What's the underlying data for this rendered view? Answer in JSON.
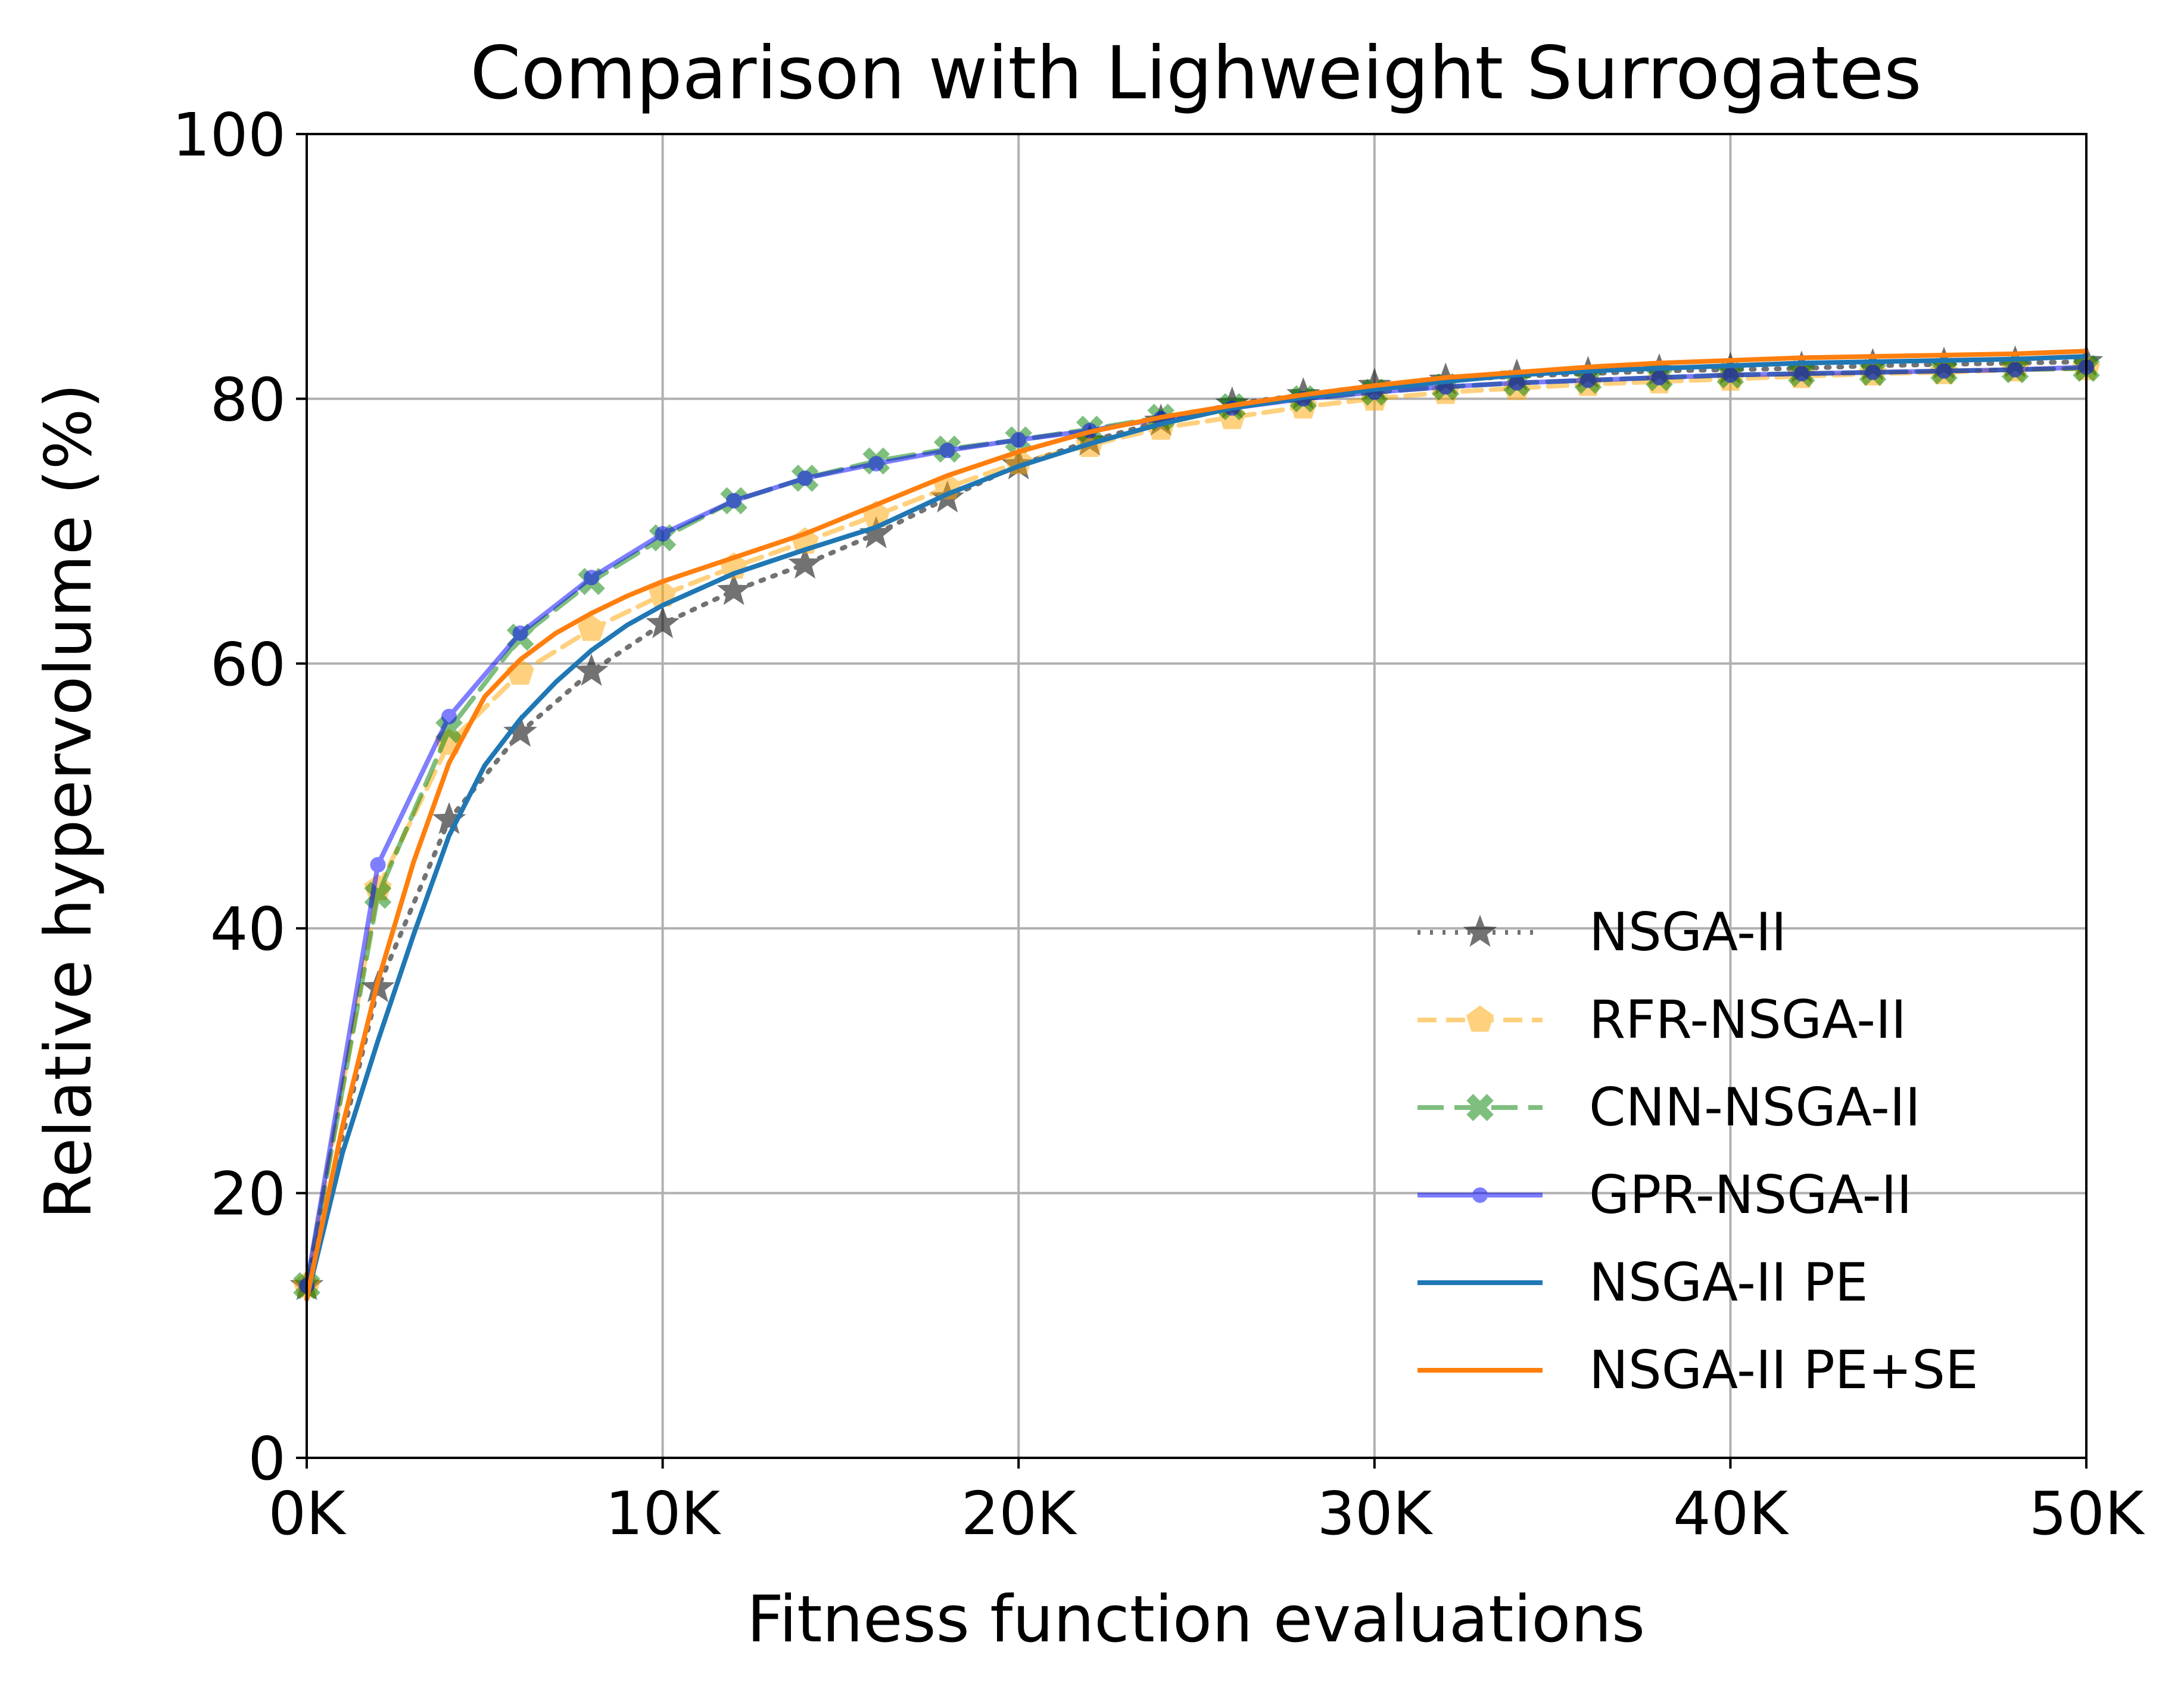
{
  "chart_data": {
    "type": "line",
    "title": "Comparison with Lighweight Surrogates",
    "xlabel": "Fitness function evaluations",
    "ylabel": "Relative hypervolume (%)",
    "xlim": [
      0,
      50000
    ],
    "ylim": [
      0,
      100
    ],
    "xticks": [
      0,
      10000,
      20000,
      30000,
      40000,
      50000
    ],
    "xtick_labels": [
      "0K",
      "10K",
      "20K",
      "30K",
      "40K",
      "50K"
    ],
    "yticks": [
      0,
      20,
      40,
      60,
      80,
      100
    ],
    "ytick_labels": [
      "0",
      "20",
      "40",
      "60",
      "80",
      "100"
    ],
    "grid": true,
    "legend_position": "lower-right",
    "series": [
      {
        "name": "NSGA-II",
        "color": "#000000",
        "dash": "dotted",
        "marker": "star",
        "opacity": 0.55,
        "x": [
          0,
          2000,
          4000,
          6000,
          8000,
          10000,
          12000,
          14000,
          16000,
          18000,
          20000,
          22000,
          24000,
          26000,
          28000,
          30000,
          32000,
          34000,
          36000,
          38000,
          40000,
          42000,
          44000,
          46000,
          48000,
          50000
        ],
        "y": [
          13,
          35.5,
          48.2,
          54.8,
          59.4,
          63,
          65.5,
          67.5,
          69.8,
          72.5,
          75,
          76.8,
          78.3,
          79.6,
          80.3,
          81,
          81.4,
          81.7,
          81.9,
          82.1,
          82.2,
          82.3,
          82.5,
          82.6,
          82.7,
          82.8
        ]
      },
      {
        "name": "RFR-NSGA-II",
        "color": "#ffa500",
        "dash": "dashed",
        "marker": "pentagon",
        "opacity": 0.5,
        "x": [
          0,
          2000,
          4000,
          6000,
          8000,
          10000,
          12000,
          14000,
          16000,
          18000,
          20000,
          22000,
          24000,
          26000,
          28000,
          30000,
          32000,
          34000,
          36000,
          38000,
          40000,
          42000,
          44000,
          46000,
          48000,
          50000
        ],
        "y": [
          13,
          43,
          54,
          59.3,
          62.6,
          65.2,
          67.3,
          69.2,
          71.2,
          73.3,
          75.2,
          76.5,
          77.8,
          78.6,
          79.4,
          80,
          80.5,
          80.8,
          81.1,
          81.3,
          81.5,
          81.7,
          81.9,
          82,
          82.2,
          82.3
        ]
      },
      {
        "name": "CNN-NSGA-II",
        "color": "#008000",
        "dash": "longdash",
        "marker": "x-filled",
        "opacity": 0.5,
        "x": [
          0,
          2000,
          4000,
          6000,
          8000,
          10000,
          12000,
          14000,
          16000,
          18000,
          20000,
          22000,
          24000,
          26000,
          28000,
          30000,
          32000,
          34000,
          36000,
          38000,
          40000,
          42000,
          44000,
          46000,
          48000,
          50000
        ],
        "y": [
          13,
          42.5,
          55,
          62,
          66.2,
          69.5,
          72.3,
          74,
          75.3,
          76.2,
          76.9,
          77.7,
          78.6,
          79.4,
          80,
          80.5,
          80.9,
          81.2,
          81.4,
          81.6,
          81.8,
          81.9,
          82,
          82.1,
          82.2,
          82.3
        ]
      },
      {
        "name": "GPR-NSGA-II",
        "color": "#0000ff",
        "dash": "solid",
        "marker": "dot",
        "opacity": 0.5,
        "x": [
          0,
          2000,
          4000,
          6000,
          8000,
          10000,
          12000,
          14000,
          16000,
          18000,
          20000,
          22000,
          24000,
          26000,
          28000,
          30000,
          32000,
          34000,
          36000,
          38000,
          40000,
          42000,
          44000,
          46000,
          48000,
          50000
        ],
        "y": [
          13,
          44.8,
          56,
          62.3,
          66.5,
          69.8,
          72.3,
          74,
          75.1,
          76.1,
          76.9,
          77.6,
          78.5,
          79.3,
          80,
          80.5,
          80.9,
          81.2,
          81.4,
          81.6,
          81.8,
          81.9,
          82,
          82.1,
          82.2,
          82.4
        ]
      },
      {
        "name": "NSGA-II PE",
        "color": "#1f77b4",
        "dash": "solid",
        "marker": "none",
        "opacity": 1,
        "x": [
          0,
          1000,
          2000,
          3000,
          4000,
          5000,
          6000,
          7000,
          8000,
          9000,
          10000,
          12000,
          14000,
          16000,
          18000,
          20000,
          22000,
          24000,
          26000,
          28000,
          30000,
          32000,
          34000,
          36000,
          38000,
          40000,
          42000,
          44000,
          46000,
          48000,
          50000
        ],
        "y": [
          12,
          23,
          31.5,
          39.5,
          47,
          52.3,
          55.8,
          58.6,
          61,
          62.9,
          64.4,
          66.8,
          68.6,
          70.3,
          72.8,
          74.9,
          76.6,
          78.1,
          79.3,
          80.1,
          80.7,
          81.3,
          81.8,
          82.1,
          82.3,
          82.5,
          82.7,
          82.8,
          82.9,
          83,
          83.2
        ]
      },
      {
        "name": "NSGA-II PE+SE",
        "color": "#ff7f0e",
        "dash": "solid",
        "marker": "none",
        "opacity": 1,
        "x": [
          0,
          1000,
          2000,
          3000,
          4000,
          5000,
          6000,
          7000,
          8000,
          9000,
          10000,
          12000,
          14000,
          16000,
          18000,
          20000,
          22000,
          24000,
          26000,
          28000,
          30000,
          32000,
          34000,
          36000,
          38000,
          40000,
          42000,
          44000,
          46000,
          48000,
          50000
        ],
        "y": [
          12,
          25,
          36,
          45,
          52.5,
          57.5,
          60.3,
          62.3,
          63.8,
          65.1,
          66.2,
          68,
          69.8,
          72,
          74.2,
          76,
          77.5,
          78.6,
          79.5,
          80.3,
          81,
          81.6,
          82,
          82.4,
          82.7,
          82.9,
          83.1,
          83.2,
          83.3,
          83.4,
          83.6
        ]
      }
    ]
  }
}
